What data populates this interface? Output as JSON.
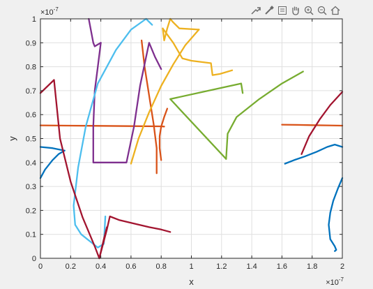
{
  "toolbar": {
    "icons": [
      "export-icon",
      "brush-icon",
      "datatip-icon",
      "pan-hand-icon",
      "zoom-in-icon",
      "zoom-out-icon",
      "home-icon"
    ]
  },
  "chart_data": {
    "type": "line",
    "title": "",
    "xlabel": "x",
    "ylabel": "y",
    "x_exponent_label": "×10",
    "x_exponent_power": "-7",
    "y_exponent_label": "×10",
    "y_exponent_power": "-7",
    "xlim": [
      0,
      2
    ],
    "ylim": [
      0,
      1
    ],
    "x_ticks": [
      0,
      0.2,
      0.4,
      0.6,
      0.8,
      1,
      1.2,
      1.4,
      1.6,
      1.8,
      2
    ],
    "x_tick_labels": [
      "0",
      "0.2",
      "0.4",
      "0.6",
      "0.8",
      "1",
      "1.2",
      "1.4",
      "1.6",
      "1.8",
      "2"
    ],
    "y_ticks": [
      0,
      0.1,
      0.2,
      0.3,
      0.4,
      0.5,
      0.6,
      0.7,
      0.8,
      0.9,
      1
    ],
    "y_tick_labels": [
      "0",
      "0.1",
      "0.2",
      "0.3",
      "0.4",
      "0.5",
      "0.6",
      "0.7",
      "0.8",
      "0.9",
      "1"
    ],
    "grid": true,
    "series": [
      {
        "color": "#0072BD",
        "x": [
          0,
          0.03,
          0.08,
          0.12,
          0.16
        ],
        "y": [
          0.335,
          0.37,
          0.41,
          0.435,
          0.45
        ]
      },
      {
        "color": "#0072BD",
        "x": [
          0,
          0.08,
          0.16
        ],
        "y": [
          0.465,
          0.46,
          0.45
        ]
      },
      {
        "color": "#0072BD",
        "x": [
          1.62,
          1.68,
          1.75,
          1.83,
          1.9,
          1.95,
          2
        ],
        "y": [
          0.395,
          0.41,
          0.425,
          0.445,
          0.465,
          0.475,
          0.465
        ]
      },
      {
        "color": "#0072BD",
        "x": [
          2,
          1.97,
          1.94,
          1.92,
          1.91,
          1.92,
          1.95,
          1.96,
          1.95
        ],
        "y": [
          0.335,
          0.29,
          0.24,
          0.19,
          0.14,
          0.08,
          0.05,
          0.035,
          0.03
        ]
      },
      {
        "color": "#D95319",
        "x": [
          0,
          0.2,
          0.4,
          0.6,
          0.8,
          0.82
        ],
        "y": [
          0.555,
          0.554,
          0.553,
          0.552,
          0.551,
          0.55
        ]
      },
      {
        "color": "#D95319",
        "x": [
          0.84,
          0.82,
          0.8,
          0.79,
          0.79,
          0.8
        ],
        "y": [
          0.625,
          0.59,
          0.55,
          0.51,
          0.46,
          0.41
        ]
      },
      {
        "color": "#D95319",
        "x": [
          0.67,
          0.69,
          0.72,
          0.75,
          0.77,
          0.77,
          0.77
        ],
        "y": [
          0.91,
          0.8,
          0.68,
          0.56,
          0.46,
          0.39,
          0.355
        ]
      },
      {
        "color": "#D95319",
        "x": [
          1.6,
          1.7,
          1.8,
          1.9,
          2
        ],
        "y": [
          0.558,
          0.557,
          0.556,
          0.555,
          0.554
        ]
      },
      {
        "color": "#EDB120",
        "x": [
          0.6,
          0.65,
          0.72,
          0.8,
          0.88,
          0.96,
          1.05
        ],
        "y": [
          0.395,
          0.5,
          0.61,
          0.72,
          0.81,
          0.89,
          0.955
        ]
      },
      {
        "color": "#EDB120",
        "x": [
          1.05,
          0.92,
          0.88,
          0.86,
          0.84,
          0.82,
          0.81
        ],
        "y": [
          0.955,
          0.96,
          0.985,
          1.0,
          0.96,
          0.91,
          0.96
        ]
      },
      {
        "color": "#EDB120",
        "x": [
          0.81,
          0.88,
          0.94,
          1.0,
          1.13,
          1.14,
          1.19,
          1.27
        ],
        "y": [
          0.96,
          0.9,
          0.835,
          0.825,
          0.815,
          0.765,
          0.77,
          0.785
        ]
      },
      {
        "color": "#7E2F8E",
        "x": [
          0.32,
          0.35,
          0.36,
          0.4
        ],
        "y": [
          1.0,
          0.9,
          0.885,
          0.9
        ]
      },
      {
        "color": "#7E2F8E",
        "x": [
          0.4,
          0.38,
          0.36,
          0.35,
          0.35,
          0.57,
          0.62,
          0.66,
          0.7,
          0.72,
          0.76,
          0.8
        ],
        "y": [
          0.9,
          0.8,
          0.7,
          0.55,
          0.4,
          0.4,
          0.55,
          0.72,
          0.84,
          0.9,
          0.84,
          0.79
        ]
      },
      {
        "color": "#77AC30",
        "x": [
          1.23,
          1.24,
          1.3,
          1.45,
          1.6,
          1.74
        ],
        "y": [
          0.415,
          0.52,
          0.59,
          0.665,
          0.73,
          0.78
        ]
      },
      {
        "color": "#77AC30",
        "x": [
          1.23,
          0.86,
          1.33,
          1.34
        ],
        "y": [
          0.415,
          0.665,
          0.73,
          0.69
        ]
      },
      {
        "color": "#4DBEEE",
        "x": [
          0.74,
          0.7,
          0.6,
          0.5,
          0.38,
          0.3,
          0.25,
          0.22,
          0.23,
          0.27,
          0.32,
          0.38,
          0.42,
          0.43
        ],
        "y": [
          0.975,
          1.0,
          0.955,
          0.87,
          0.73,
          0.55,
          0.38,
          0.22,
          0.14,
          0.1,
          0.075,
          0.045,
          0.06,
          0.175
        ]
      },
      {
        "color": "#A2142F",
        "x": [
          0,
          0.09,
          0.09,
          0.13,
          0.2,
          0.28,
          0.36,
          0.39,
          0.42,
          0.44
        ],
        "y": [
          0.69,
          0.745,
          0.745,
          0.5,
          0.32,
          0.17,
          0.05,
          0.0,
          0.08,
          0.13
        ]
      },
      {
        "color": "#A2142F",
        "x": [
          0.39,
          0.44,
          0.46,
          0.52,
          0.62,
          0.72,
          0.8,
          0.86
        ],
        "y": [
          0.0,
          0.12,
          0.175,
          0.16,
          0.145,
          0.13,
          0.12,
          0.11
        ]
      },
      {
        "color": "#A2142F",
        "x": [
          1.73,
          1.78,
          1.85,
          1.92,
          2
        ],
        "y": [
          0.435,
          0.51,
          0.58,
          0.64,
          0.695
        ]
      }
    ]
  }
}
